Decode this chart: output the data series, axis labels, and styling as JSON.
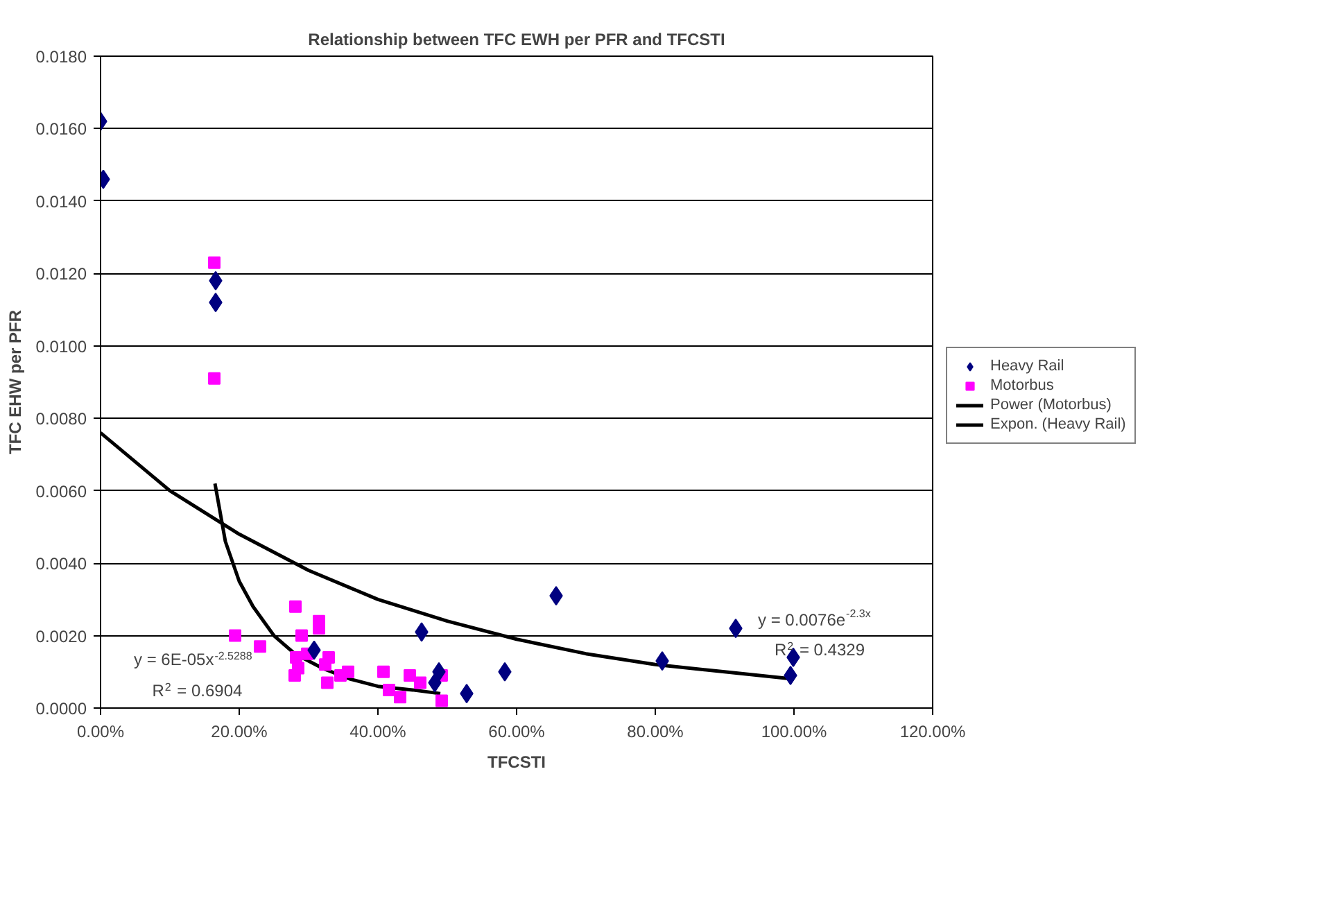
{
  "chart_data": {
    "type": "scatter",
    "title": "Relationship between TFC EWH per PFR and TFCSTI",
    "xlabel": "TFCSTI",
    "ylabel": "TFC EHW per PFR",
    "xlim": [
      0,
      1.2
    ],
    "ylim": [
      0,
      0.018
    ],
    "xticks": [
      {
        "value": 0,
        "label": "0.00%"
      },
      {
        "value": 0.2,
        "label": "20.00%"
      },
      {
        "value": 0.4,
        "label": "40.00%"
      },
      {
        "value": 0.6,
        "label": "60.00%"
      },
      {
        "value": 0.8,
        "label": "80.00%"
      },
      {
        "value": 1.0,
        "label": "100.00%"
      },
      {
        "value": 1.2,
        "label": "120.00%"
      }
    ],
    "yticks": [
      {
        "value": 0,
        "label": "0.0000"
      },
      {
        "value": 0.002,
        "label": "0.0020"
      },
      {
        "value": 0.004,
        "label": "0.0040"
      },
      {
        "value": 0.006,
        "label": "0.0060"
      },
      {
        "value": 0.008,
        "label": "0.0080"
      },
      {
        "value": 0.01,
        "label": "0.0100"
      },
      {
        "value": 0.012,
        "label": "0.0120"
      },
      {
        "value": 0.014,
        "label": "0.0140"
      },
      {
        "value": 0.016,
        "label": "0.0160"
      },
      {
        "value": 0.018,
        "label": "0.0180"
      }
    ],
    "grid": "y",
    "legend": "right",
    "series": [
      {
        "name": "Heavy Rail",
        "marker": "diamond",
        "color": "#000080",
        "x": [
          0.0,
          0.004,
          0.166,
          0.166,
          0.308,
          0.463,
          0.488,
          0.482,
          0.528,
          0.583,
          0.657,
          0.81,
          0.916,
          0.999,
          0.995
        ],
        "values": [
          0.0162,
          0.0146,
          0.0118,
          0.0112,
          0.0016,
          0.0021,
          0.001,
          0.0007,
          0.0004,
          0.001,
          0.0031,
          0.0013,
          0.0022,
          0.0014,
          0.0009
        ]
      },
      {
        "name": "Motorbus",
        "marker": "square",
        "color": "#ff00ff",
        "x": [
          0.164,
          0.164,
          0.194,
          0.23,
          0.281,
          0.29,
          0.315,
          0.315,
          0.298,
          0.282,
          0.285,
          0.28,
          0.329,
          0.324,
          0.327,
          0.346,
          0.357,
          0.408,
          0.416,
          0.432,
          0.446,
          0.461,
          0.492,
          0.492
        ],
        "values": [
          0.0123,
          0.0091,
          0.002,
          0.0017,
          0.0028,
          0.002,
          0.0024,
          0.0022,
          0.0015,
          0.0014,
          0.0011,
          0.0009,
          0.0014,
          0.0012,
          0.0007,
          0.0009,
          0.001,
          0.001,
          0.0005,
          0.0003,
          0.0009,
          0.0007,
          0.0009,
          0.0002
        ]
      },
      {
        "name": "Power (Motorbus)",
        "type": "line",
        "line_style": "solid",
        "color": "#000000",
        "x": [
          0.165,
          0.18,
          0.2,
          0.22,
          0.25,
          0.28,
          0.32,
          0.36,
          0.4,
          0.45,
          0.49
        ],
        "values": [
          0.0062,
          0.0046,
          0.0035,
          0.0028,
          0.002,
          0.0015,
          0.0011,
          0.0008,
          0.0006,
          0.0005,
          0.0004
        ]
      },
      {
        "name": "Expon. (Heavy Rail)",
        "type": "line",
        "line_style": "solid",
        "color": "#000000",
        "x": [
          0,
          0.1,
          0.2,
          0.3,
          0.4,
          0.5,
          0.6,
          0.7,
          0.8,
          0.9,
          1.0
        ],
        "values": [
          0.0076,
          0.006,
          0.0048,
          0.0038,
          0.003,
          0.0024,
          0.0019,
          0.0015,
          0.0012,
          0.001,
          0.0008
        ]
      }
    ],
    "annotations": [
      "y = 6E-05x$^{-2.5288}$",
      "R$^{2}$ = 0.6904",
      "y = 0.0076e$^{-2.3x}$",
      "R$^{2}$ = 0.4329"
    ]
  }
}
